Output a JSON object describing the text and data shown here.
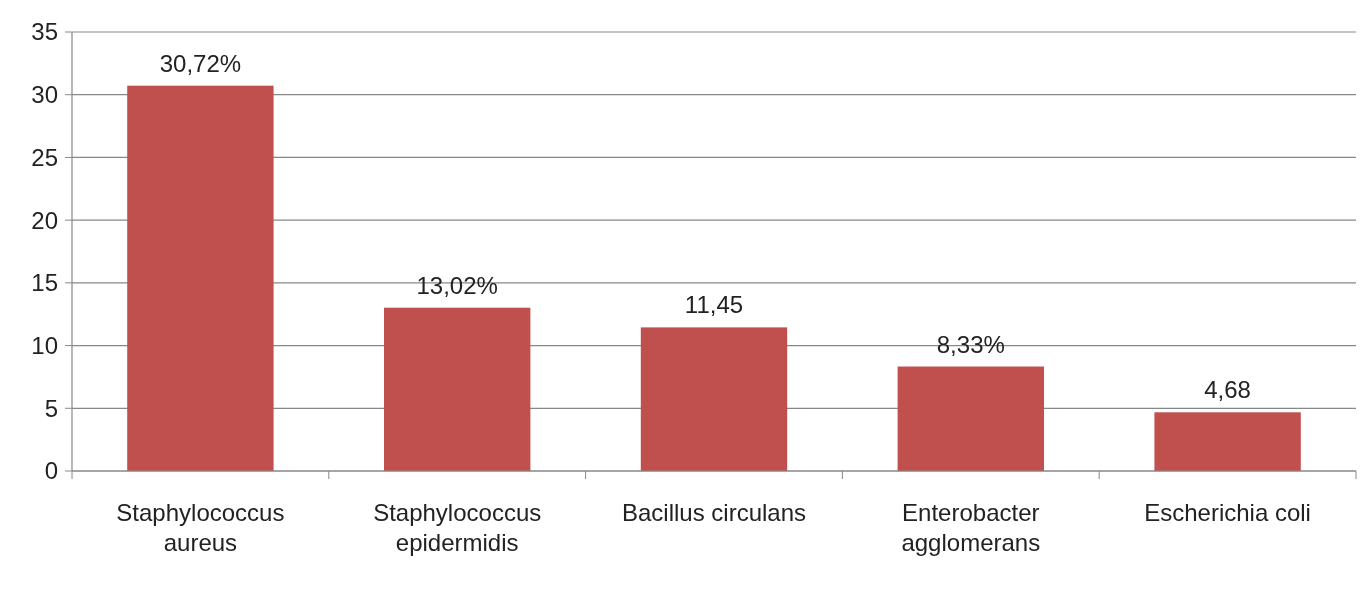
{
  "chart_data": {
    "type": "bar",
    "categories": [
      "Staphylococcus aureus",
      "Staphylococcus epidermidis",
      "Bacillus circulans",
      "Enterobacter agglomerans",
      "Escherichia coli"
    ],
    "values": [
      30.72,
      13.02,
      11.45,
      8.33,
      4.68
    ],
    "color": "#c0504d",
    "value_labels": [
      "30,72%",
      "13,02%",
      "11,45",
      "8,33%",
      "4,68"
    ],
    "ylim": [
      0,
      35
    ],
    "yticks": [
      0,
      5,
      10,
      15,
      20,
      25,
      30,
      35
    ],
    "grid": "y"
  }
}
